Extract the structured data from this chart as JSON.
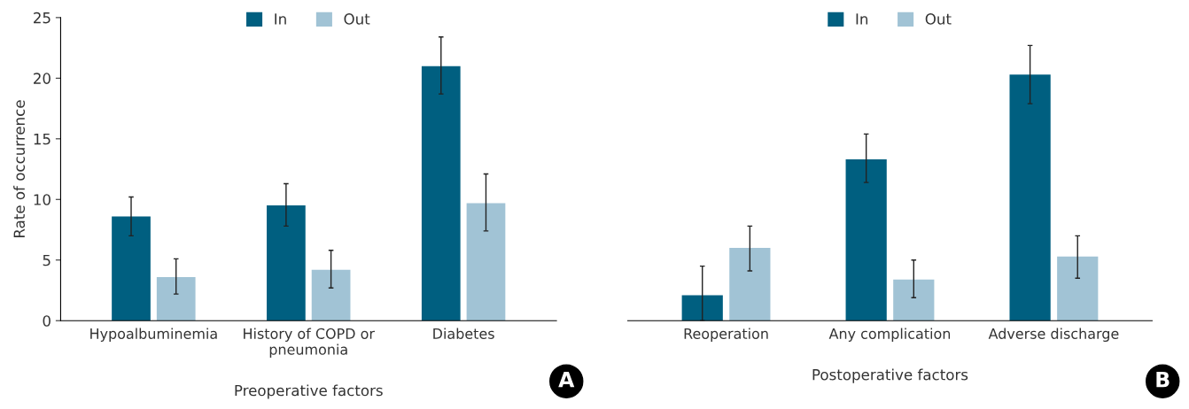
{
  "chart_data": [
    {
      "type": "bar",
      "categories": [
        "Hypoalbuminemia",
        "History of COPD or\npneumonia",
        "Diabetes"
      ],
      "xlabel": "Preoperative factors",
      "ylabel": "Rate of occurrence",
      "ylim": [
        0,
        25
      ],
      "yticks": [
        0,
        5,
        10,
        15,
        20,
        25
      ],
      "legend": "top",
      "grid": false,
      "annotations": [
        "A"
      ],
      "series": [
        {
          "name": "In",
          "color": "#005f80",
          "values": [
            8.6,
            9.5,
            21.0
          ],
          "errors": [
            [
              7.0,
              10.2
            ],
            [
              7.8,
              11.3
            ],
            [
              18.7,
              23.4
            ]
          ]
        },
        {
          "name": "Out",
          "color": "#a1c3d5",
          "values": [
            3.6,
            4.2,
            9.7
          ],
          "errors": [
            [
              2.2,
              5.1
            ],
            [
              2.7,
              5.8
            ],
            [
              7.4,
              12.1
            ]
          ]
        }
      ]
    },
    {
      "type": "bar",
      "categories": [
        "Reoperation",
        "Any complication",
        "Adverse discharge"
      ],
      "xlabel": "Postoperative factors",
      "ylim": [
        0,
        25
      ],
      "tick_labels": "x",
      "legend": "top",
      "grid": false,
      "annotations": [
        "B"
      ],
      "series": [
        {
          "name": "In",
          "color": "#005f80",
          "values": [
            2.1,
            13.3,
            20.3
          ],
          "errors": [
            [
              0.0,
              4.5
            ],
            [
              11.4,
              15.4
            ],
            [
              17.9,
              22.7
            ]
          ]
        },
        {
          "name": "Out",
          "color": "#a1c3d5",
          "values": [
            6.0,
            3.4,
            5.3
          ],
          "errors": [
            [
              4.1,
              7.8
            ],
            [
              1.9,
              5.0
            ],
            [
              3.5,
              7.0
            ]
          ]
        }
      ]
    }
  ]
}
